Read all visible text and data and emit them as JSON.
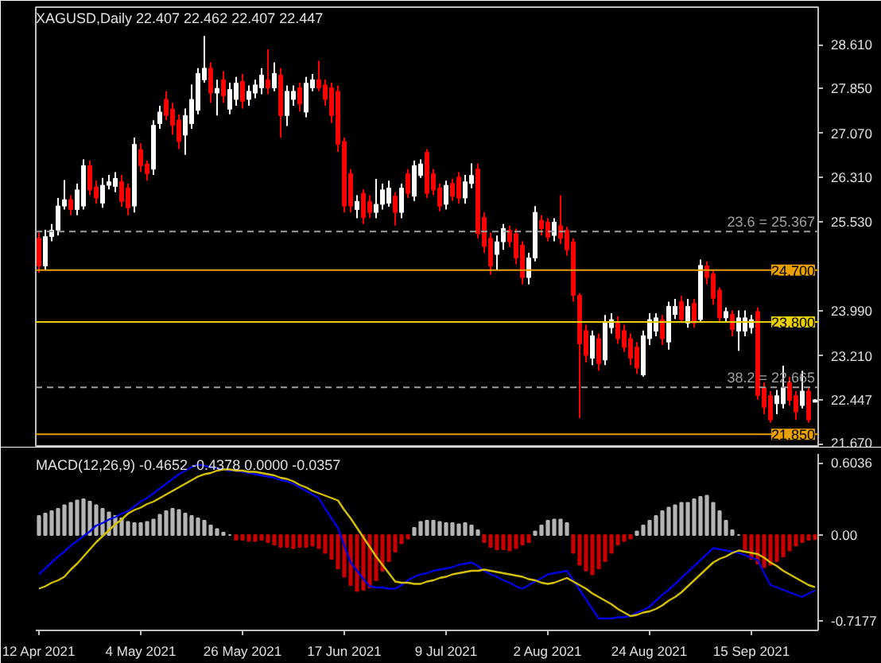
{
  "chart_data": [
    {
      "type": "candlestick",
      "title": "XAGUSD,Daily  22.407 22.462 22.407 22.447",
      "categories": [
        null,
        null,
        null,
        null,
        null,
        null,
        null,
        null,
        null,
        null,
        null,
        null,
        null,
        null,
        null,
        null,
        null,
        null,
        null,
        null,
        null,
        null,
        null,
        null,
        null,
        null,
        null,
        null,
        null,
        null,
        null,
        null,
        null,
        null,
        null,
        null,
        null,
        null,
        null,
        null,
        null,
        null,
        null,
        null,
        null,
        null,
        null,
        null,
        null,
        null,
        null,
        null,
        null,
        null,
        null,
        null,
        null,
        null,
        null,
        null,
        null,
        null,
        null,
        null,
        null,
        null,
        null,
        null,
        null,
        null,
        null,
        null,
        null,
        null,
        null,
        null,
        null,
        null,
        null,
        null,
        null,
        null,
        null,
        null,
        null,
        null,
        null,
        null,
        null,
        null,
        null,
        null,
        null,
        null,
        null,
        null,
        null,
        null,
        null,
        null,
        null,
        null,
        null,
        null,
        null,
        null,
        null,
        null,
        null,
        null,
        null,
        null,
        null,
        null,
        null,
        null,
        null,
        null,
        null,
        null,
        null,
        null,
        null
      ],
      "ohlc": [
        [
          25.25,
          25.35,
          24.65,
          24.77
        ],
        [
          24.77,
          25.4,
          24.7,
          25.28
        ],
        [
          25.28,
          25.5,
          25.2,
          25.39
        ],
        [
          25.39,
          25.95,
          25.3,
          25.81
        ],
        [
          25.81,
          26.26,
          25.75,
          25.92
        ],
        [
          25.92,
          26.0,
          25.65,
          25.75
        ],
        [
          25.75,
          26.2,
          25.65,
          26.09
        ],
        [
          25.81,
          26.62,
          25.75,
          26.51
        ],
        [
          26.51,
          26.6,
          26.0,
          26.09
        ],
        [
          26.14,
          26.25,
          25.85,
          25.95
        ],
        [
          25.86,
          26.3,
          25.78,
          26.17
        ],
        [
          26.17,
          26.35,
          26.1,
          26.23
        ],
        [
          26.15,
          26.4,
          26.05,
          26.29
        ],
        [
          26.23,
          26.35,
          25.8,
          25.89
        ],
        [
          26.12,
          26.2,
          25.65,
          25.78
        ],
        [
          25.81,
          27.0,
          25.7,
          26.88
        ],
        [
          26.79,
          26.9,
          26.4,
          26.51
        ],
        [
          26.54,
          26.6,
          26.25,
          26.37
        ],
        [
          26.45,
          27.3,
          26.35,
          27.21
        ],
        [
          27.24,
          27.55,
          27.15,
          27.44
        ],
        [
          27.66,
          27.8,
          27.3,
          27.38
        ],
        [
          27.49,
          27.6,
          27.05,
          27.21
        ],
        [
          27.3,
          27.4,
          26.8,
          26.93
        ],
        [
          27.04,
          27.5,
          26.7,
          27.38
        ],
        [
          27.24,
          27.92,
          27.15,
          27.66
        ],
        [
          27.47,
          28.2,
          27.4,
          28.11
        ],
        [
          28.0,
          28.76,
          27.95,
          28.2
        ],
        [
          28.2,
          28.3,
          27.6,
          27.77
        ],
        [
          27.77,
          28.0,
          27.38,
          27.85
        ],
        [
          28.0,
          28.15,
          27.6,
          27.72
        ],
        [
          27.49,
          27.95,
          27.4,
          27.83
        ],
        [
          27.66,
          28.05,
          27.55,
          27.94
        ],
        [
          27.97,
          28.1,
          27.5,
          27.63
        ],
        [
          27.66,
          27.9,
          27.55,
          27.8
        ],
        [
          27.77,
          28.0,
          27.68,
          27.91
        ],
        [
          27.86,
          28.2,
          27.75,
          28.08
        ],
        [
          28.0,
          28.53,
          27.75,
          27.86
        ],
        [
          27.86,
          28.3,
          27.8,
          28.11
        ],
        [
          28.08,
          28.2,
          27.0,
          27.38
        ],
        [
          27.38,
          27.9,
          27.2,
          27.8
        ],
        [
          27.66,
          27.9,
          27.55,
          27.8
        ],
        [
          27.86,
          27.95,
          27.45,
          27.58
        ],
        [
          27.44,
          28.05,
          27.35,
          27.94
        ],
        [
          27.86,
          28.1,
          27.8,
          28.0
        ],
        [
          28.0,
          28.33,
          27.8,
          27.86
        ],
        [
          27.91,
          28.0,
          27.55,
          27.66
        ],
        [
          27.86,
          27.95,
          27.25,
          27.38
        ],
        [
          27.8,
          27.9,
          26.75,
          26.88
        ],
        [
          26.93,
          27.0,
          25.7,
          25.81
        ],
        [
          26.37,
          26.45,
          25.7,
          25.81
        ],
        [
          25.75,
          26.0,
          25.6,
          25.89
        ],
        [
          26.03,
          26.1,
          25.5,
          25.61
        ],
        [
          25.89,
          26.0,
          25.6,
          25.7
        ],
        [
          25.7,
          26.28,
          25.6,
          25.84
        ],
        [
          25.84,
          26.2,
          25.75,
          26.09
        ],
        [
          25.86,
          26.25,
          25.8,
          26.12
        ],
        [
          25.98,
          26.05,
          25.47,
          25.7
        ],
        [
          25.7,
          26.2,
          25.6,
          26.12
        ],
        [
          26.37,
          26.45,
          25.95,
          26.03
        ],
        [
          25.98,
          26.6,
          25.9,
          26.51
        ],
        [
          26.34,
          26.62,
          26.3,
          26.54
        ],
        [
          26.74,
          26.8,
          25.95,
          26.03
        ],
        [
          26.37,
          26.45,
          26.0,
          26.09
        ],
        [
          26.12,
          26.2,
          25.72,
          25.81
        ],
        [
          25.84,
          26.25,
          25.75,
          26.17
        ],
        [
          26.2,
          26.28,
          25.9,
          25.98
        ],
        [
          26.31,
          26.4,
          25.85,
          25.95
        ],
        [
          25.95,
          26.35,
          25.85,
          26.23
        ],
        [
          26.2,
          26.55,
          26.12,
          26.34
        ],
        [
          26.45,
          26.55,
          25.25,
          25.33
        ],
        [
          25.61,
          25.7,
          25.0,
          25.11
        ],
        [
          25.25,
          25.35,
          24.62,
          24.77
        ],
        [
          24.97,
          25.3,
          24.7,
          25.19
        ],
        [
          25.19,
          25.5,
          25.05,
          25.42
        ],
        [
          25.39,
          25.47,
          25.1,
          25.19
        ],
        [
          25.33,
          25.42,
          24.8,
          24.91
        ],
        [
          25.13,
          25.2,
          24.45,
          24.57
        ],
        [
          24.57,
          25.0,
          24.45,
          24.91
        ],
        [
          24.91,
          25.81,
          24.85,
          25.7
        ],
        [
          25.56,
          25.65,
          25.3,
          25.42
        ],
        [
          25.53,
          25.6,
          25.2,
          25.27
        ],
        [
          25.3,
          25.6,
          25.2,
          25.53
        ],
        [
          25.47,
          26.0,
          25.15,
          25.25
        ],
        [
          25.39,
          25.45,
          24.95,
          25.05
        ],
        [
          25.19,
          25.25,
          24.15,
          24.26
        ],
        [
          24.26,
          24.3,
          22.13,
          23.42
        ],
        [
          23.65,
          23.75,
          23.1,
          23.22
        ],
        [
          23.17,
          23.65,
          23.05,
          23.56
        ],
        [
          23.51,
          23.6,
          22.95,
          23.08
        ],
        [
          23.14,
          23.92,
          23.05,
          23.78
        ],
        [
          23.7,
          23.95,
          23.6,
          23.84
        ],
        [
          23.78,
          23.9,
          23.42,
          23.51
        ],
        [
          23.65,
          23.75,
          23.28,
          23.36
        ],
        [
          23.51,
          23.6,
          23.05,
          23.17
        ],
        [
          23.36,
          23.45,
          22.9,
          23.0
        ],
        [
          22.88,
          23.65,
          22.85,
          23.56
        ],
        [
          23.51,
          23.95,
          23.4,
          23.84
        ],
        [
          23.64,
          23.95,
          23.55,
          23.87
        ],
        [
          23.84,
          23.92,
          23.4,
          23.51
        ],
        [
          23.45,
          24.15,
          23.32,
          24.07
        ],
        [
          23.93,
          24.2,
          23.85,
          24.07
        ],
        [
          24.15,
          24.25,
          23.78,
          23.84
        ],
        [
          23.78,
          24.2,
          23.7,
          24.07
        ],
        [
          24.12,
          24.2,
          23.7,
          23.78
        ],
        [
          23.84,
          24.88,
          23.8,
          24.78
        ],
        [
          24.77,
          24.85,
          24.45,
          24.57
        ],
        [
          24.63,
          24.7,
          24.1,
          24.21
        ],
        [
          24.35,
          24.4,
          23.8,
          23.87
        ],
        [
          23.87,
          24.05,
          23.8,
          23.98
        ],
        [
          23.93,
          24.0,
          23.55,
          23.67
        ],
        [
          23.64,
          24.0,
          23.3,
          23.87
        ],
        [
          23.64,
          24.0,
          23.55,
          23.87
        ],
        [
          23.7,
          23.92,
          23.6,
          23.84
        ],
        [
          23.98,
          24.05,
          22.45,
          22.52
        ],
        [
          22.66,
          22.75,
          22.2,
          22.32
        ],
        [
          22.52,
          22.6,
          22.05,
          22.1
        ],
        [
          22.38,
          22.62,
          22.2,
          22.52
        ],
        [
          22.38,
          23.04,
          22.3,
          22.66
        ],
        [
          22.75,
          22.85,
          22.35,
          22.44
        ],
        [
          22.52,
          22.6,
          22.1,
          22.24
        ],
        [
          22.35,
          22.95,
          22.3,
          22.6
        ],
        [
          22.6,
          22.65,
          22.05,
          22.1
        ],
        [
          22.407,
          22.462,
          22.407,
          22.447
        ]
      ],
      "ylim": [
        21.62,
        29.26
      ],
      "yticks": [
        {
          "value": 28.61,
          "label": "28.610"
        },
        {
          "value": 27.85,
          "label": "27.850"
        },
        {
          "value": 27.07,
          "label": "27.070"
        },
        {
          "value": 26.31,
          "label": "26.310"
        },
        {
          "value": 25.53,
          "label": "25.530"
        },
        {
          "value": 23.99,
          "label": "23.990"
        },
        {
          "value": 23.21,
          "label": "23.210"
        },
        {
          "value": 22.447,
          "label": "22.447"
        },
        {
          "value": 21.67,
          "label": "21.670"
        }
      ],
      "ref_lines": [
        {
          "axis": "y",
          "value": 25.367,
          "label": "23.6 = 25.367",
          "color": "#a0a0a0",
          "line_style": "dashed"
        },
        {
          "axis": "y",
          "value": 24.7,
          "label": "24.700",
          "color": "#e8a000",
          "line_style": "solid"
        },
        {
          "axis": "y",
          "value": 23.8,
          "label": "23.800",
          "color": "#e8d000",
          "line_style": "solid"
        },
        {
          "axis": "y",
          "value": 22.665,
          "label": "38.2 = 22.665",
          "color": "#a0a0a0",
          "line_style": "dashed"
        },
        {
          "axis": "y",
          "value": 21.85,
          "label": "21.850",
          "color": "#e8a000",
          "line_style": "solid"
        }
      ],
      "tick_labels": "y"
    },
    {
      "type": "bar",
      "title": "MACD(12,26,9) -0.4652 -0.4378 0.0000 -0.0357",
      "categories": [
        "12 Apr 2021",
        null,
        null,
        null,
        null,
        null,
        null,
        null,
        null,
        null,
        null,
        null,
        null,
        null,
        null,
        null,
        "4 May 2021",
        null,
        null,
        null,
        null,
        null,
        null,
        null,
        null,
        null,
        null,
        null,
        null,
        null,
        null,
        null,
        "26 May 2021",
        null,
        null,
        null,
        null,
        null,
        null,
        null,
        null,
        null,
        null,
        null,
        null,
        null,
        null,
        null,
        "17 Jun 2021",
        null,
        null,
        null,
        null,
        null,
        null,
        null,
        null,
        null,
        null,
        null,
        null,
        null,
        null,
        null,
        "9 Jul 2021",
        null,
        null,
        null,
        null,
        null,
        null,
        null,
        null,
        null,
        null,
        null,
        null,
        null,
        null,
        null,
        "2 Aug 2021",
        null,
        null,
        null,
        null,
        null,
        null,
        null,
        null,
        null,
        null,
        null,
        null,
        null,
        null,
        null,
        "24 Aug 2021",
        null,
        null,
        null,
        null,
        null,
        null,
        null,
        null,
        null,
        null,
        null,
        null,
        null,
        null,
        null,
        "15 Sep 2021",
        null,
        null,
        null,
        null,
        null,
        null,
        null,
        null,
        null,
        null
      ],
      "ylim": [
        -0.8,
        0.68
      ],
      "yticks": [
        0.6036,
        {
          "value": 0,
          "label": "0.00"
        },
        -0.7177
      ],
      "series": [
        {
          "type": "bar",
          "colors": [
            "#b4b4b4",
            "#b4b4b4",
            "#b4b4b4",
            "#b4b4b4",
            "#b4b4b4",
            "#b4b4b4",
            "#b4b4b4",
            "#b4b4b4",
            "#b4b4b4",
            "#b4b4b4",
            "#b4b4b4",
            "#b4b4b4",
            "#b4b4b4",
            "#b4b4b4",
            "#b4b4b4",
            "#b4b4b4",
            "#b4b4b4",
            "#b4b4b4",
            "#b4b4b4",
            "#b4b4b4",
            "#b4b4b4",
            "#b4b4b4",
            "#b4b4b4",
            "#b4b4b4",
            "#b4b4b4",
            "#b4b4b4",
            "#b4b4b4",
            "#b4b4b4",
            "#b4b4b4",
            "#b4b4b4",
            "#b4b4b4",
            "#c80000",
            "#c80000",
            "#c80000",
            "#c80000",
            "#c80000",
            "#c80000",
            "#c80000",
            "#c80000",
            "#c80000",
            "#c80000",
            "#c80000",
            "#c80000",
            "#c80000",
            "#c80000",
            "#c80000",
            "#c80000",
            "#c80000",
            "#c80000",
            "#c80000",
            "#c80000",
            "#c80000",
            "#c80000",
            "#c80000",
            "#c80000",
            "#c80000",
            "#c80000",
            "#c80000",
            "#c80000",
            "#b4b4b4",
            "#b4b4b4",
            "#b4b4b4",
            "#b4b4b4",
            "#b4b4b4",
            "#b4b4b4",
            "#b4b4b4",
            "#b4b4b4",
            "#b4b4b4",
            "#b4b4b4",
            "#b4b4b4",
            "#c80000",
            "#c80000",
            "#c80000",
            "#c80000",
            "#c80000",
            "#c80000",
            "#c80000",
            "#c80000",
            "#b4b4b4",
            "#b4b4b4",
            "#b4b4b4",
            "#b4b4b4",
            "#b4b4b4",
            "#b4b4b4",
            "#c80000",
            "#c80000",
            "#c80000",
            "#c80000",
            "#c80000",
            "#c80000",
            "#c80000",
            "#c80000",
            "#c80000",
            "#c80000",
            "#b4b4b4",
            "#b4b4b4",
            "#b4b4b4",
            "#b4b4b4",
            "#b4b4b4",
            "#b4b4b4",
            "#b4b4b4",
            "#b4b4b4",
            "#b4b4b4",
            "#b4b4b4",
            "#b4b4b4",
            "#b4b4b4",
            "#b4b4b4",
            "#b4b4b4",
            "#b4b4b4",
            "#b4b4b4",
            "#b4b4b4",
            "#c80000",
            "#c80000",
            "#c80000",
            "#c80000",
            "#c80000",
            "#c80000",
            "#c80000",
            "#c80000",
            "#c80000",
            "#c80000",
            "#c80000",
            "#c80000"
          ],
          "values": [
            0.16,
            0.18,
            0.2,
            0.22,
            0.25,
            0.27,
            0.29,
            0.3,
            0.28,
            0.25,
            0.22,
            0.19,
            0.16,
            0.14,
            0.11,
            0.1,
            0.1,
            0.11,
            0.13,
            0.17,
            0.2,
            0.22,
            0.21,
            0.18,
            0.16,
            0.14,
            0.12,
            0.08,
            0.05,
            0.02,
            0,
            -0.04,
            -0.04,
            -0.05,
            -0.05,
            -0.04,
            -0.06,
            -0.08,
            -0.1,
            -0.1,
            -0.11,
            -0.1,
            -0.1,
            -0.09,
            -0.11,
            -0.15,
            -0.2,
            -0.28,
            -0.35,
            -0.42,
            -0.47,
            -0.46,
            -0.44,
            -0.38,
            -0.3,
            -0.22,
            -0.14,
            -0.07,
            -0.03,
            0.06,
            0.11,
            0.12,
            0.12,
            0.11,
            0.1,
            0.1,
            0.09,
            0.1,
            0.08,
            0.04,
            -0.06,
            -0.1,
            -0.12,
            -0.12,
            -0.13,
            -0.11,
            -0.08,
            -0.06,
            0.03,
            0.08,
            0.12,
            0.13,
            0.13,
            0.1,
            -0.15,
            -0.25,
            -0.3,
            -0.33,
            -0.28,
            -0.22,
            -0.15,
            -0.08,
            -0.05,
            -0.03,
            0.03,
            0.08,
            0.12,
            0.16,
            0.2,
            0.23,
            0.25,
            0.27,
            0.27,
            0.3,
            0.32,
            0.33,
            0.27,
            0.2,
            0.12,
            0.04,
            0,
            -0.12,
            -0.2,
            -0.24,
            -0.27,
            -0.25,
            -0.22,
            -0.18,
            -0.13,
            -0.09,
            -0.06,
            -0.04,
            -0.0357
          ]
        },
        {
          "type": "line",
          "color": "#0000e0",
          "values": [
            -0.33,
            -0.28,
            -0.23,
            -0.18,
            -0.14,
            -0.09,
            -0.05,
            -0.01,
            0.03,
            0.08,
            0.1,
            0.13,
            0.15,
            0.18,
            0.2,
            0.24,
            0.28,
            0.31,
            0.35,
            0.39,
            0.43,
            0.47,
            0.51,
            0.54,
            0.57,
            0.59,
            0.58,
            0.57,
            0.56,
            0.55,
            0.54,
            0.54,
            0.53,
            0.52,
            0.51,
            0.5,
            0.49,
            0.48,
            0.46,
            0.45,
            0.43,
            0.4,
            0.37,
            0.34,
            0.31,
            0.22,
            0.14,
            0.06,
            -0.09,
            -0.23,
            -0.3,
            -0.37,
            -0.43,
            -0.44,
            -0.44,
            -0.45,
            -0.45,
            -0.42,
            -0.38,
            -0.35,
            -0.33,
            -0.32,
            -0.3,
            -0.29,
            -0.28,
            -0.27,
            -0.25,
            -0.24,
            -0.23,
            -0.26,
            -0.3,
            -0.33,
            -0.35,
            -0.38,
            -0.4,
            -0.43,
            -0.45,
            -0.42,
            -0.39,
            -0.36,
            -0.33,
            -0.32,
            -0.31,
            -0.3,
            -0.38,
            -0.46,
            -0.54,
            -0.62,
            -0.7,
            -0.7,
            -0.7,
            -0.69,
            -0.69,
            -0.68,
            -0.65,
            -0.63,
            -0.6,
            -0.55,
            -0.5,
            -0.46,
            -0.41,
            -0.36,
            -0.31,
            -0.26,
            -0.21,
            -0.16,
            -0.11,
            -0.12,
            -0.13,
            -0.14,
            -0.15,
            -0.17,
            -0.19,
            -0.21,
            -0.32,
            -0.42,
            -0.44,
            -0.46,
            -0.48,
            -0.5,
            -0.52,
            -0.49,
            -0.4652
          ]
        },
        {
          "type": "line",
          "color": "#d4c000",
          "values": [
            -0.45,
            -0.43,
            -0.4,
            -0.38,
            -0.35,
            -0.29,
            -0.24,
            -0.18,
            -0.12,
            -0.06,
            -0.01,
            0.04,
            0.09,
            0.13,
            0.18,
            0.21,
            0.23,
            0.26,
            0.28,
            0.31,
            0.34,
            0.37,
            0.4,
            0.43,
            0.46,
            0.49,
            0.51,
            0.52,
            0.54,
            0.55,
            0.55,
            0.54,
            0.54,
            0.53,
            0.53,
            0.52,
            0.51,
            0.5,
            0.48,
            0.47,
            0.45,
            0.42,
            0.4,
            0.37,
            0.35,
            0.33,
            0.31,
            0.29,
            0.21,
            0.14,
            0.06,
            -0.02,
            -0.1,
            -0.18,
            -0.25,
            -0.32,
            -0.39,
            -0.4,
            -0.4,
            -0.41,
            -0.41,
            -0.39,
            -0.38,
            -0.36,
            -0.35,
            -0.33,
            -0.32,
            -0.31,
            -0.3,
            -0.3,
            -0.29,
            -0.3,
            -0.31,
            -0.32,
            -0.33,
            -0.34,
            -0.35,
            -0.37,
            -0.38,
            -0.4,
            -0.41,
            -0.4,
            -0.38,
            -0.36,
            -0.39,
            -0.42,
            -0.45,
            -0.49,
            -0.52,
            -0.55,
            -0.58,
            -0.62,
            -0.65,
            -0.68,
            -0.67,
            -0.65,
            -0.64,
            -0.62,
            -0.59,
            -0.55,
            -0.52,
            -0.48,
            -0.43,
            -0.38,
            -0.33,
            -0.28,
            -0.23,
            -0.2,
            -0.18,
            -0.15,
            -0.13,
            -0.14,
            -0.15,
            -0.16,
            -0.19,
            -0.23,
            -0.26,
            -0.3,
            -0.33,
            -0.36,
            -0.39,
            -0.42,
            -0.4378
          ]
        }
      ]
    }
  ]
}
